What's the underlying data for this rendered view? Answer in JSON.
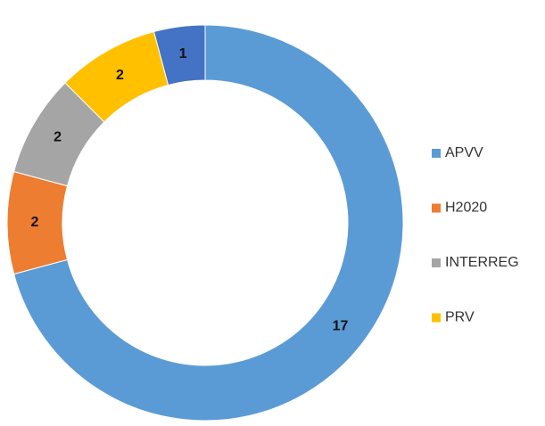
{
  "chart_data": {
    "type": "donut",
    "categories": [
      "APVV",
      "H2020",
      "INTERREG",
      "PRV",
      null
    ],
    "values": [
      17,
      2,
      2,
      2,
      1
    ],
    "colors": [
      "#5b9bd5",
      "#ed7d31",
      "#a5a5a5",
      "#ffc000",
      "#4472c4"
    ],
    "legend": "right"
  }
}
